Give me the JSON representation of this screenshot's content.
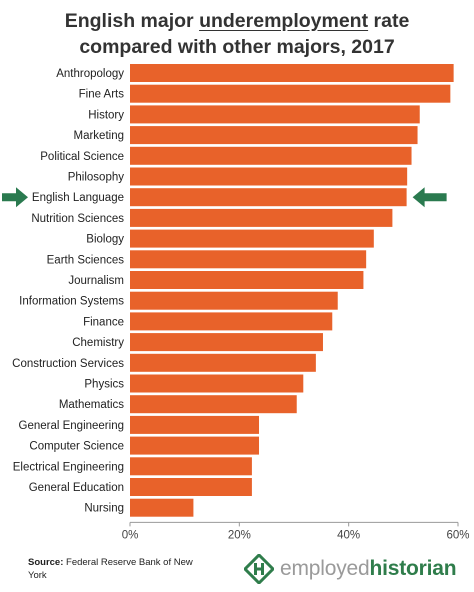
{
  "title_line1": "English major underemployment rate",
  "title_line2": "compared with other majors, 2017",
  "title_parts": {
    "pre": "English major ",
    "underlined": "underemployment",
    "post": " rate"
  },
  "source_label": "Source:",
  "source_text": " Federal Reserve Bank of New York",
  "logo": {
    "part1": "employed",
    "part2": "historian"
  },
  "colors": {
    "bar": "#e8622a",
    "arrow": "#2a7a4f",
    "axis": "#9a9a9a",
    "logo_green": "#2f7d4b",
    "logo_gray": "#9a9a9a"
  },
  "highlight_category": "English Language",
  "chart_data": {
    "type": "bar",
    "orientation": "horizontal",
    "categories": [
      "Anthropology",
      "Fine Arts",
      "History",
      "Marketing",
      "Political Science",
      "Philosophy",
      "English Language",
      "Nutrition Sciences",
      "Biology",
      "Earth Sciences",
      "Journalism",
      "Information Systems",
      "Finance",
      "Chemistry",
      "Construction Services",
      "Physics",
      "Mathematics",
      "General Engineering",
      "Computer Science",
      "Electrical Engineering",
      "General Education",
      "Nursing"
    ],
    "values": [
      59.2,
      58.6,
      53.0,
      52.6,
      51.5,
      50.7,
      50.6,
      48.0,
      44.6,
      43.2,
      42.7,
      38.0,
      37.0,
      35.3,
      34.0,
      31.7,
      30.5,
      23.6,
      23.6,
      22.3,
      22.3,
      11.6
    ],
    "xlim": [
      0,
      60
    ],
    "xticks": [
      "0%",
      "20%",
      "40%",
      "60%"
    ],
    "xtick_values": [
      0,
      20,
      40,
      60
    ],
    "grid": false,
    "legend": "none"
  }
}
